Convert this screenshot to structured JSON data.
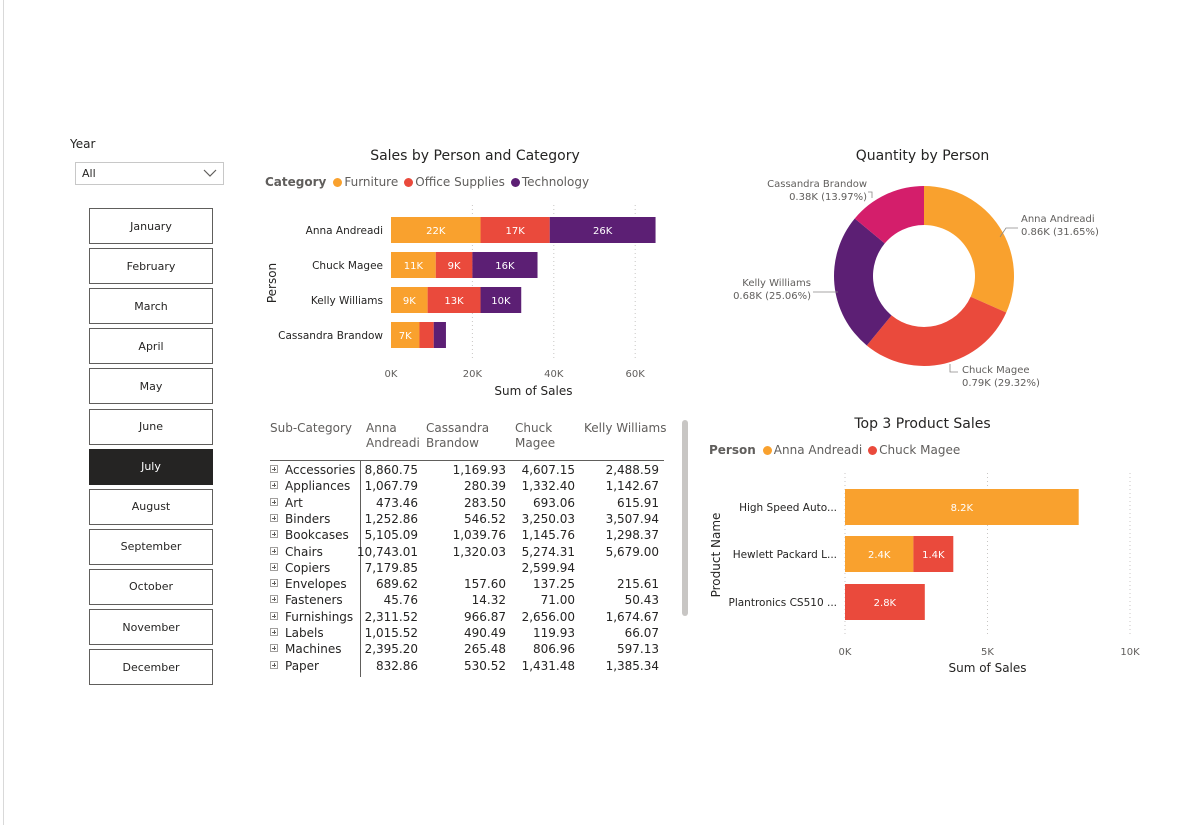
{
  "slicer": {
    "year_label": "Year",
    "year_value": "All",
    "months": [
      "January",
      "February",
      "March",
      "April",
      "May",
      "June",
      "July",
      "August",
      "September",
      "October",
      "November",
      "December"
    ],
    "selected_month": "July"
  },
  "colors": {
    "furniture": "#F9A12E",
    "office_supplies": "#EA4A3C",
    "technology": "#5C1F74",
    "cassandra": "#D41E6B",
    "selected": "#252423"
  },
  "sales_chart": {
    "legend_title": "Category",
    "y_axis_title": "Person",
    "chart_data": {
      "type": "bar",
      "title": "Sales by Person and Category",
      "xlabel": "Sum of Sales",
      "ylabel": "Person",
      "orientation": "horizontal",
      "stacked": true,
      "categories": [
        "Anna Andreadi",
        "Chuck Magee",
        "Kelly Williams",
        "Cassandra Brandow"
      ],
      "series": [
        {
          "name": "Furniture",
          "values": [
            22,
            11,
            9,
            7
          ],
          "labels": [
            "22K",
            "11K",
            "9K",
            "7K"
          ]
        },
        {
          "name": "Office Supplies",
          "values": [
            17,
            9,
            13,
            3.5
          ],
          "labels": [
            "17K",
            "9K",
            "13K",
            ""
          ]
        },
        {
          "name": "Technology",
          "values": [
            26,
            16,
            10,
            3
          ],
          "labels": [
            "26K",
            "16K",
            "10K",
            ""
          ]
        }
      ],
      "units": "K",
      "xlim": [
        0,
        70
      ],
      "xticks": [
        0,
        20,
        40,
        60
      ],
      "xtick_labels": [
        "0K",
        "20K",
        "40K",
        "60K"
      ]
    }
  },
  "quantity_chart": {
    "chart_data": {
      "type": "pie",
      "donut": true,
      "title": "Quantity by Person",
      "slices": [
        {
          "name": "Anna Andreadi",
          "value": 0.86,
          "label": "0.86K (31.65%)",
          "percent": 31.65
        },
        {
          "name": "Chuck Magee",
          "value": 0.79,
          "label": "0.79K (29.32%)",
          "percent": 29.32
        },
        {
          "name": "Kelly Williams",
          "value": 0.68,
          "label": "0.68K (25.06%)",
          "percent": 25.06
        },
        {
          "name": "Cassandra Brandow",
          "value": 0.38,
          "label": "0.38K (13.97%)",
          "percent": 13.97
        }
      ]
    }
  },
  "matrix": {
    "headers": {
      "sub_category": "Sub-Category",
      "anna_1": "Anna",
      "anna_2": "Andreadi",
      "cassandra_1": "Cassandra",
      "cassandra_2": "Brandow",
      "chuck_1": "Chuck",
      "chuck_2": "Magee",
      "kelly_1": "Kelly Williams"
    },
    "rows": [
      {
        "name": "Accessories",
        "anna": "8,860.75",
        "cassandra": "1,169.93",
        "chuck": "4,607.15",
        "kelly": "2,488.59"
      },
      {
        "name": "Appliances",
        "anna": "1,067.79",
        "cassandra": "280.39",
        "chuck": "1,332.40",
        "kelly": "1,142.67"
      },
      {
        "name": "Art",
        "anna": "473.46",
        "cassandra": "283.50",
        "chuck": "693.06",
        "kelly": "615.91"
      },
      {
        "name": "Binders",
        "anna": "1,252.86",
        "cassandra": "546.52",
        "chuck": "3,250.03",
        "kelly": "3,507.94"
      },
      {
        "name": "Bookcases",
        "anna": "5,105.09",
        "cassandra": "1,039.76",
        "chuck": "1,145.76",
        "kelly": "1,298.37"
      },
      {
        "name": "Chairs",
        "anna": "10,743.01",
        "cassandra": "1,320.03",
        "chuck": "5,274.31",
        "kelly": "5,679.00"
      },
      {
        "name": "Copiers",
        "anna": "7,179.85",
        "cassandra": "",
        "chuck": "2,599.94",
        "kelly": ""
      },
      {
        "name": "Envelopes",
        "anna": "689.62",
        "cassandra": "157.60",
        "chuck": "137.25",
        "kelly": "215.61"
      },
      {
        "name": "Fasteners",
        "anna": "45.76",
        "cassandra": "14.32",
        "chuck": "71.00",
        "kelly": "50.43"
      },
      {
        "name": "Furnishings",
        "anna": "2,311.52",
        "cassandra": "966.87",
        "chuck": "2,656.00",
        "kelly": "1,674.67"
      },
      {
        "name": "Labels",
        "anna": "1,015.52",
        "cassandra": "490.49",
        "chuck": "119.93",
        "kelly": "66.07"
      },
      {
        "name": "Machines",
        "anna": "2,395.20",
        "cassandra": "265.48",
        "chuck": "806.96",
        "kelly": "597.13"
      },
      {
        "name": "Paper",
        "anna": "832.86",
        "cassandra": "530.52",
        "chuck": "1,431.48",
        "kelly": "1,385.34"
      }
    ]
  },
  "top3_chart": {
    "legend_title": "Person",
    "y_axis_title": "Product Name",
    "chart_data": {
      "type": "bar",
      "title": "Top 3 Product Sales",
      "xlabel": "Sum of Sales",
      "ylabel": "Product Name",
      "orientation": "horizontal",
      "stacked": true,
      "categories": [
        "High Speed Auto...",
        "Hewlett Packard L...",
        "Plantronics CS510 ..."
      ],
      "series": [
        {
          "name": "Anna Andreadi",
          "values": [
            8.2,
            2.4,
            0
          ],
          "labels": [
            "8.2K",
            "2.4K",
            ""
          ]
        },
        {
          "name": "Chuck Magee",
          "values": [
            0,
            1.4,
            2.8
          ],
          "labels": [
            "",
            "1.4K",
            "2.8K"
          ]
        }
      ],
      "units": "K",
      "xlim": [
        0,
        10
      ],
      "xticks": [
        0,
        5,
        10
      ],
      "xtick_labels": [
        "0K",
        "5K",
        "10K"
      ]
    }
  }
}
